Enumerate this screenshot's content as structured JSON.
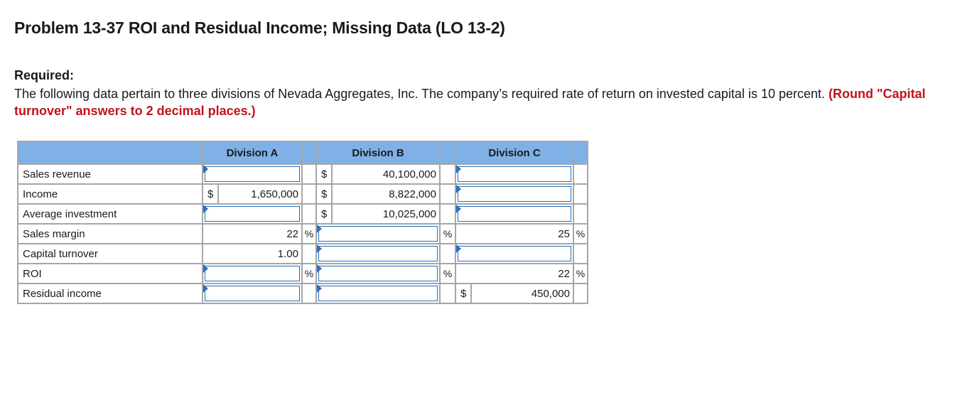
{
  "title": "Problem 13-37 ROI and Residual Income; Missing Data (LO 13-2)",
  "required_label": "Required:",
  "instructions_text": "The following data pertain to three divisions of Nevada Aggregates, Inc. The company’s required rate of return on invested capital is 10 percent.",
  "instructions_note": "(Round \"Capital turnover\" answers to 2 decimal places.)",
  "table": {
    "headers": [
      "Division A",
      "Division B",
      "Division C"
    ],
    "rows": {
      "sales_revenue": {
        "label": "Sales revenue",
        "b_sym": "$",
        "b_val": "40,100,000"
      },
      "income": {
        "label": "Income",
        "a_sym": "$",
        "a_val": "1,650,000",
        "b_sym": "$",
        "b_val": "8,822,000"
      },
      "average_investment": {
        "label": "Average investment",
        "b_sym": "$",
        "b_val": "10,025,000"
      },
      "sales_margin": {
        "label": "Sales margin",
        "a_val": "22",
        "a_pct": "%",
        "b_pct": "%",
        "c_val": "25",
        "c_pct": "%"
      },
      "capital_turnover": {
        "label": "Capital turnover",
        "a_val": "1.00"
      },
      "roi": {
        "label": "ROI",
        "a_pct": "%",
        "b_pct": "%",
        "c_val": "22",
        "c_pct": "%"
      },
      "residual_income": {
        "label": "Residual income",
        "c_sym": "$",
        "c_val": "450,000"
      }
    }
  },
  "colors": {
    "header_bg": "#7fb1e6",
    "note_red": "#c0141b",
    "input_border": "#1f6fbf"
  }
}
